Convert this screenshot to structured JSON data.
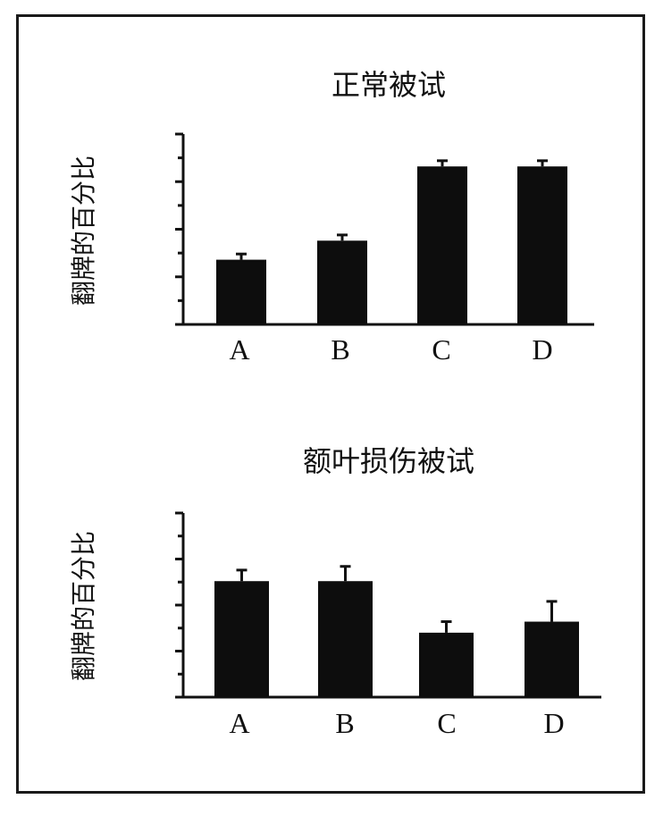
{
  "chart_data": [
    {
      "type": "bar",
      "title": "正常被试",
      "ylabel": "翻牌的百分比",
      "categories": [
        "A",
        "B",
        "C",
        "D"
      ],
      "values": [
        0.34,
        0.44,
        0.83,
        0.83
      ],
      "errors": [
        0.03,
        0.03,
        0.03,
        0.03
      ],
      "ylim": [
        0,
        1
      ],
      "grid": false,
      "bar_color": "#0d0d0d"
    },
    {
      "type": "bar",
      "title": "额叶损伤被试",
      "ylabel": "翻牌的百分比",
      "categories": [
        "A",
        "B",
        "C",
        "D"
      ],
      "values": [
        0.63,
        0.63,
        0.35,
        0.41
      ],
      "errors": [
        0.06,
        0.08,
        0.06,
        0.11
      ],
      "ylim": [
        0,
        1
      ],
      "grid": false,
      "bar_color": "#0d0d0d"
    }
  ]
}
